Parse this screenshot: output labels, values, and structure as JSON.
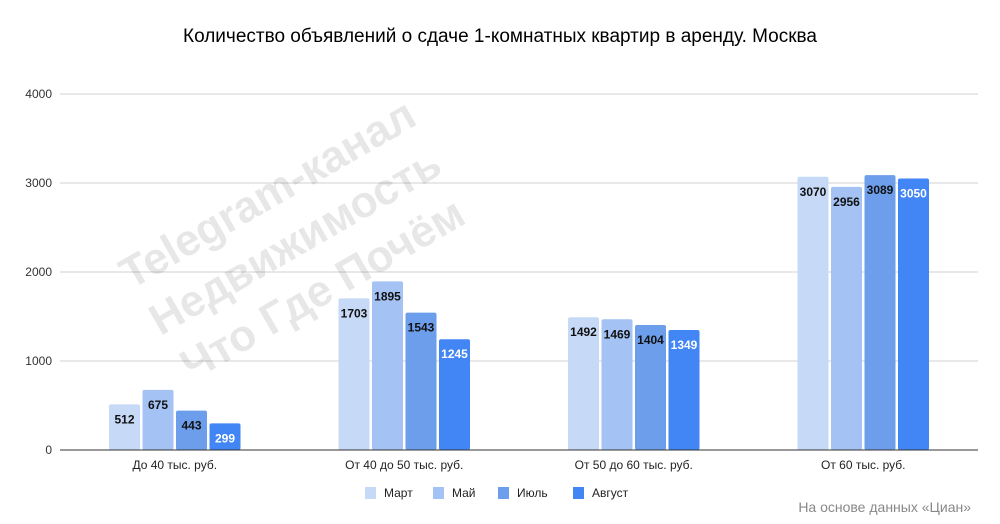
{
  "chart_data": {
    "type": "bar",
    "title": "Количество объявлений о сдаче 1-комнатных квартир в аренду. Москва",
    "categories": [
      "До 40 тыс. руб.",
      "От 40 до 50 тыс. руб.",
      "От 50 до 60 тыс. руб.",
      "От 60 тыс. руб."
    ],
    "series": [
      {
        "name": "Март",
        "color": "#c6d9f7",
        "values": [
          512,
          1703,
          1492,
          3070
        ]
      },
      {
        "name": "Май",
        "color": "#a4c2f4",
        "values": [
          675,
          1895,
          1469,
          2956
        ]
      },
      {
        "name": "Июль",
        "color": "#6d9eeb",
        "values": [
          443,
          1543,
          1404,
          3089
        ]
      },
      {
        "name": "Август",
        "color": "#4285f4",
        "values": [
          299,
          1245,
          1349,
          3050
        ]
      }
    ],
    "ylim": [
      0,
      4000
    ],
    "yticks": [
      0,
      1000,
      2000,
      3000,
      4000
    ],
    "xlabel": "",
    "ylabel": "",
    "grid": true,
    "legend": "bottom-center",
    "source": "На основе данных «Циан»"
  },
  "watermark": [
    "Telegram-канал",
    "Недвижимость",
    "Что Где Почём"
  ]
}
